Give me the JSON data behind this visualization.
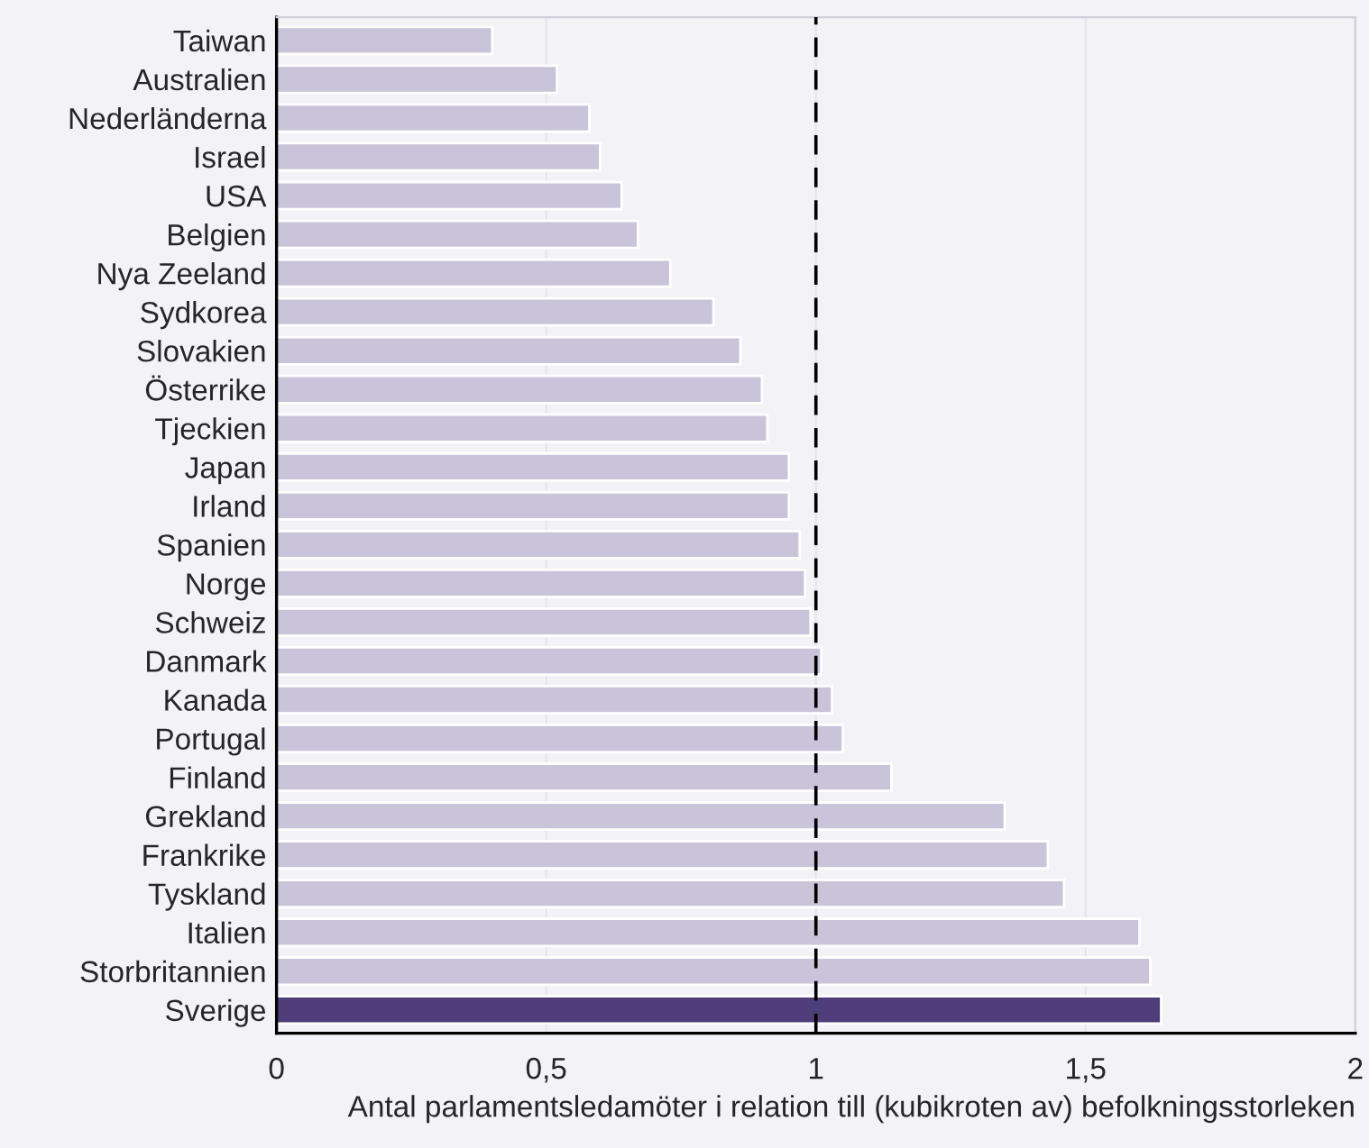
{
  "chart_data": {
    "type": "bar",
    "orientation": "horizontal",
    "xlabel": "Antal parlamentsledamöter i relation till (kubikroten av) befolkningsstorleken",
    "categories": [
      "Taiwan",
      "Australien",
      "Nederländerna",
      "Israel",
      "USA",
      "Belgien",
      "Nya Zeeland",
      "Sydkorea",
      "Slovakien",
      "Österrike",
      "Tjeckien",
      "Japan",
      "Irland",
      "Spanien",
      "Norge",
      "Schweiz",
      "Danmark",
      "Kanada",
      "Portugal",
      "Finland",
      "Grekland",
      "Frankrike",
      "Tyskland",
      "Italien",
      "Storbritannien",
      "Sverige"
    ],
    "values": [
      0.4,
      0.52,
      0.58,
      0.6,
      0.64,
      0.67,
      0.73,
      0.81,
      0.86,
      0.9,
      0.91,
      0.95,
      0.95,
      0.97,
      0.98,
      0.99,
      1.01,
      1.03,
      1.05,
      1.14,
      1.35,
      1.43,
      1.46,
      1.6,
      1.62,
      1.64
    ],
    "colors": [
      "#c9c4d9",
      "#c9c4d9",
      "#c9c4d9",
      "#c9c4d9",
      "#c9c4d9",
      "#c9c4d9",
      "#c9c4d9",
      "#c9c4d9",
      "#c9c4d9",
      "#c9c4d9",
      "#c9c4d9",
      "#c9c4d9",
      "#c9c4d9",
      "#c9c4d9",
      "#c9c4d9",
      "#c9c4d9",
      "#c9c4d9",
      "#c9c4d9",
      "#c9c4d9",
      "#c9c4d9",
      "#c9c4d9",
      "#c9c4d9",
      "#c9c4d9",
      "#c9c4d9",
      "#c9c4d9",
      "#4e3d78"
    ],
    "xlim": [
      0,
      2
    ],
    "xticks": [
      {
        "value": 0,
        "label": "0"
      },
      {
        "value": 0.5,
        "label": "0,5"
      },
      {
        "value": 1,
        "label": "1"
      },
      {
        "value": 1.5,
        "label": "1,5"
      },
      {
        "value": 2,
        "label": "2"
      }
    ],
    "grid": "x",
    "ref_lines": [
      {
        "axis": "x",
        "value": 1,
        "color": "#000000",
        "line_style": "dashed"
      }
    ]
  }
}
